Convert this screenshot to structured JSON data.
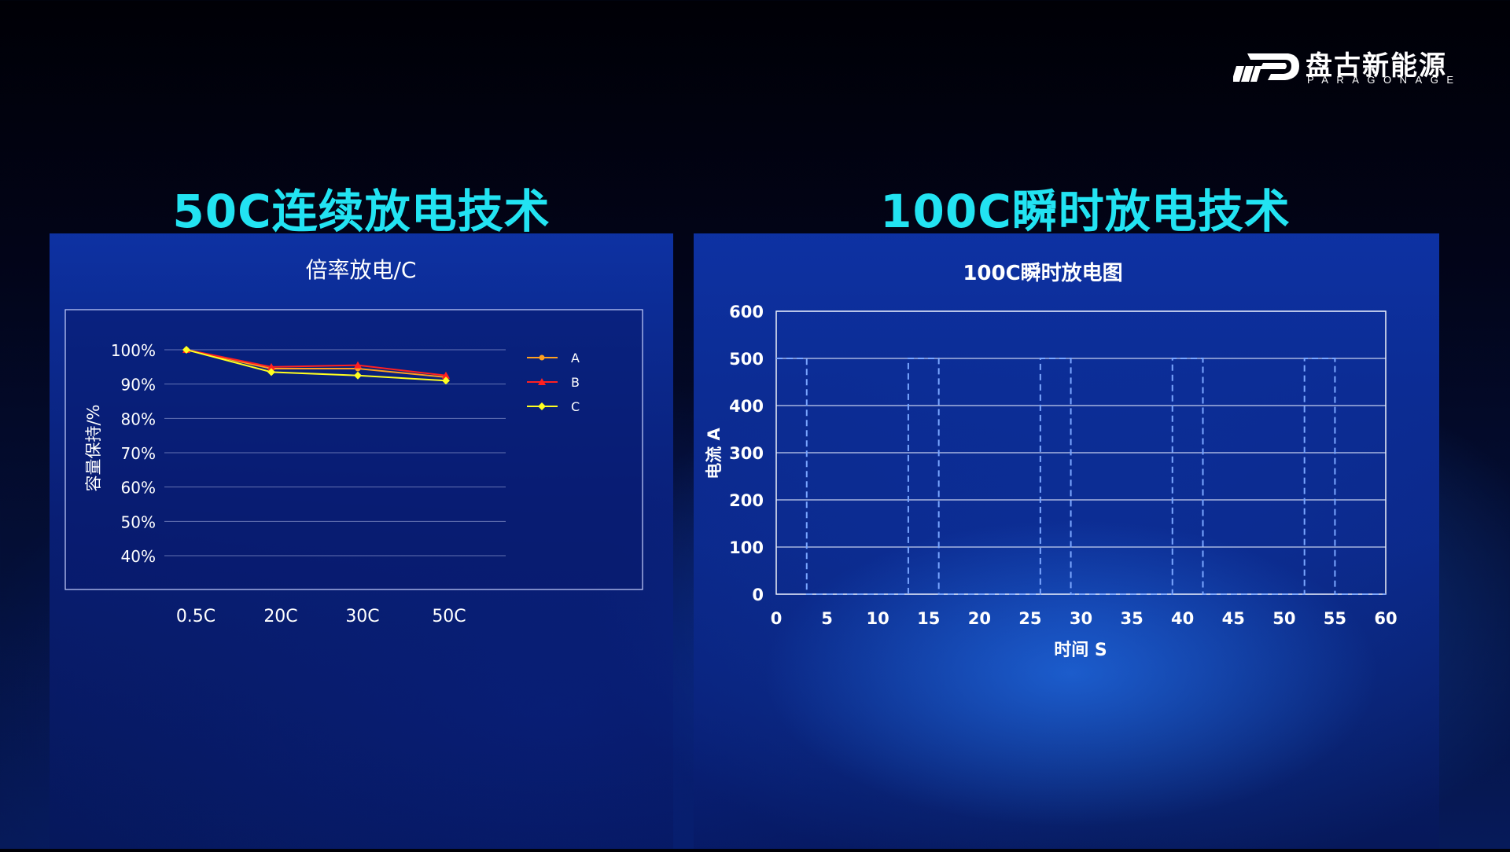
{
  "brand": {
    "name_cn": "盘古新能源",
    "name_en": "PARAGONAGE"
  },
  "sections": {
    "left_title": "50C连续放电技术",
    "right_title": "100C瞬时放电技术"
  },
  "colors": {
    "title_cyan": "#22e3f2",
    "series_a": "#ffa020",
    "series_b": "#ff2020",
    "series_c": "#ffff20"
  },
  "chart_data": [
    {
      "type": "line",
      "title": "倍率放电/C",
      "xlabel": "",
      "ylabel": "容量保持/%",
      "categories": [
        "0.5C",
        "20C",
        "30C",
        "50C"
      ],
      "y_ticks": [
        "40%",
        "50%",
        "60%",
        "70%",
        "80%",
        "90%",
        "100%"
      ],
      "ylim": [
        40,
        100
      ],
      "legend_position": "right",
      "series": [
        {
          "name": "A",
          "values": [
            100,
            94.5,
            94.5,
            92
          ],
          "marker": "circle"
        },
        {
          "name": "B",
          "values": [
            100,
            95,
            95.5,
            92.5
          ],
          "marker": "triangle"
        },
        {
          "name": "C",
          "values": [
            100,
            93.5,
            92.5,
            91
          ],
          "marker": "diamond"
        }
      ]
    },
    {
      "type": "line",
      "title": "100C瞬时放电图",
      "xlabel": "时间 S",
      "ylabel": "电流 A",
      "xlim": [
        0,
        60
      ],
      "ylim": [
        0,
        600
      ],
      "x_ticks": [
        0,
        5,
        10,
        15,
        20,
        25,
        30,
        35,
        40,
        45,
        50,
        55,
        60
      ],
      "y_ticks": [
        0,
        100,
        200,
        300,
        400,
        500,
        600
      ],
      "series": [
        {
          "name": "",
          "x": [
            0,
            3,
            3,
            13,
            13,
            16,
            16,
            26,
            26,
            29,
            29,
            39,
            39,
            42,
            42,
            52,
            52,
            55,
            55,
            60
          ],
          "y": [
            500,
            500,
            0,
            0,
            500,
            500,
            0,
            0,
            500,
            500,
            0,
            0,
            500,
            500,
            0,
            0,
            500,
            500,
            0,
            0
          ]
        }
      ]
    }
  ]
}
